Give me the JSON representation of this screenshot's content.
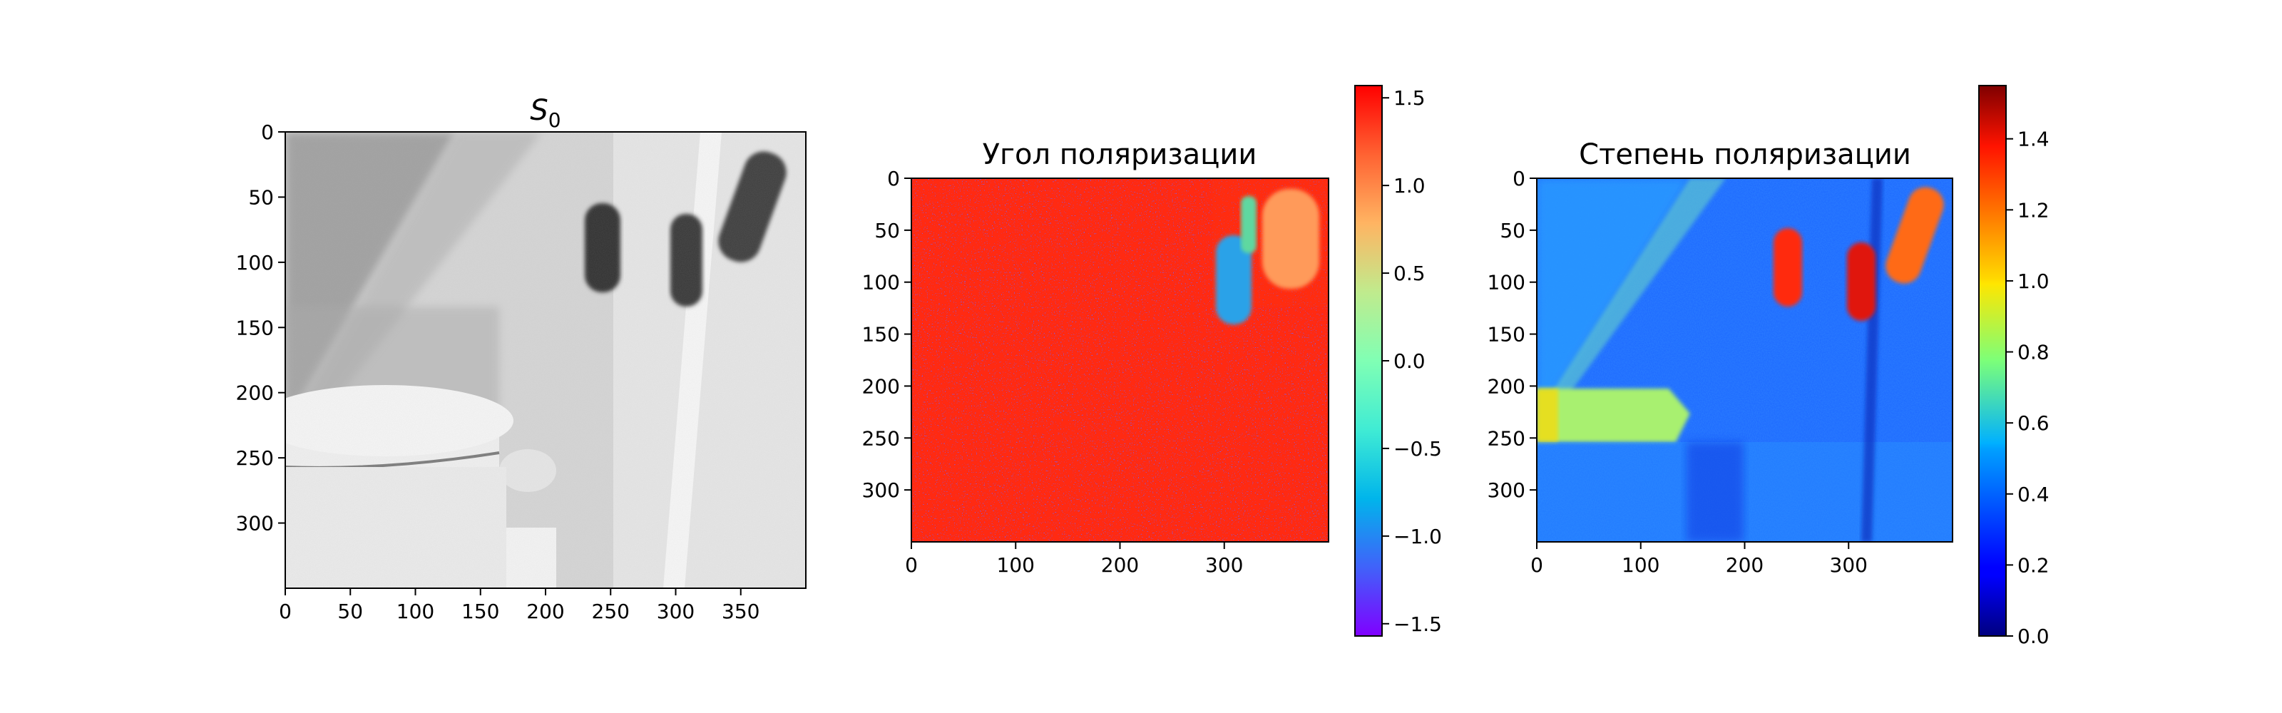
{
  "chart_data": [
    {
      "type": "heatmap",
      "title": "S",
      "title_subscript": "0",
      "colormap": "gray",
      "xlim": [
        0,
        400
      ],
      "ylim": [
        350,
        0
      ],
      "x_ticks": [
        0,
        50,
        100,
        150,
        200,
        250,
        300,
        350
      ],
      "y_ticks": [
        0,
        50,
        100,
        150,
        200,
        250,
        300
      ],
      "colorbar": false
    },
    {
      "type": "heatmap",
      "title": "Угол поляризации",
      "colormap": "rainbow",
      "xlim": [
        0,
        400
      ],
      "ylim": [
        350,
        0
      ],
      "x_ticks": [
        0,
        100,
        200,
        300
      ],
      "y_ticks": [
        0,
        50,
        100,
        150,
        200,
        250,
        300
      ],
      "colorbar": true,
      "colorbar_range": [
        -1.57,
        1.57
      ],
      "colorbar_ticks": [
        -1.5,
        -1.0,
        -0.5,
        0.0,
        0.5,
        1.0,
        1.5
      ],
      "colorbar_tick_labels": [
        "−1.5",
        "−1.0",
        "−0.5",
        "0.0",
        "0.5",
        "1.0",
        "1.5"
      ]
    },
    {
      "type": "heatmap",
      "title": "Степень поляризации",
      "colormap": "jet",
      "xlim": [
        0,
        400
      ],
      "ylim": [
        350,
        0
      ],
      "x_ticks": [
        0,
        100,
        200,
        300
      ],
      "y_ticks": [
        0,
        50,
        100,
        150,
        200,
        250,
        300
      ],
      "colorbar": true,
      "colorbar_range": [
        0,
        1.55
      ],
      "colorbar_ticks": [
        0.0,
        0.2,
        0.4,
        0.6,
        0.8,
        1.0,
        1.2,
        1.4
      ],
      "colorbar_tick_labels": [
        "0.0",
        "0.2",
        "0.4",
        "0.6",
        "0.8",
        "1.0",
        "1.2",
        "1.4"
      ]
    }
  ]
}
